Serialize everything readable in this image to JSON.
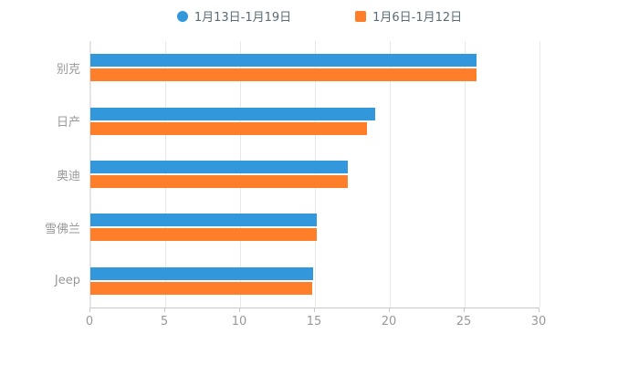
{
  "legend": {
    "items": [
      {
        "label": "1月13日-1月19日",
        "color": "#3398DB",
        "marker": "circle"
      },
      {
        "label": "1月6日-1月12日",
        "color": "#FF7E29",
        "marker": "square"
      }
    ]
  },
  "chart_data": {
    "type": "bar",
    "orientation": "horizontal",
    "title": "",
    "xlabel": "",
    "ylabel": "",
    "categories": [
      "别克",
      "日产",
      "奥迪",
      "雪佛兰",
      "Jeep"
    ],
    "series": [
      {
        "name": "1月13日-1月19日",
        "color": "#3398DB",
        "values": [
          25.8,
          19.0,
          17.2,
          15.1,
          14.9
        ]
      },
      {
        "name": "1月6日-1月12日",
        "color": "#FF7E29",
        "values": [
          25.8,
          18.5,
          17.2,
          15.1,
          14.8
        ]
      }
    ],
    "xlim": [
      0,
      30
    ],
    "xticks": [
      0,
      5,
      10,
      15,
      20,
      25,
      30
    ],
    "grid": true,
    "legend_position": "top"
  }
}
